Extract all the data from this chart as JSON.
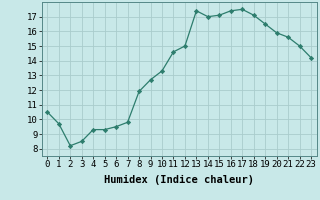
{
  "x": [
    0,
    1,
    2,
    3,
    4,
    5,
    6,
    7,
    8,
    9,
    10,
    11,
    12,
    13,
    14,
    15,
    16,
    17,
    18,
    19,
    20,
    21,
    22,
    23
  ],
  "y": [
    10.5,
    9.7,
    8.2,
    8.5,
    9.3,
    9.3,
    9.5,
    9.8,
    11.9,
    12.7,
    13.3,
    14.6,
    15.0,
    17.4,
    17.0,
    17.1,
    17.4,
    17.5,
    17.1,
    16.5,
    15.9,
    15.6,
    15.0,
    14.2
  ],
  "line_color": "#2d7d6d",
  "marker": "D",
  "marker_size": 2.2,
  "bg_color": "#c8e8e8",
  "grid_color": "#aacccc",
  "xlabel": "Humidex (Indice chaleur)",
  "xlim": [
    -0.5,
    23.5
  ],
  "ylim": [
    7.5,
    18.0
  ],
  "yticks": [
    8,
    9,
    10,
    11,
    12,
    13,
    14,
    15,
    16,
    17
  ],
  "xtick_labels": [
    "0",
    "1",
    "2",
    "3",
    "4",
    "5",
    "6",
    "7",
    "8",
    "9",
    "10",
    "11",
    "12",
    "13",
    "14",
    "15",
    "16",
    "17",
    "18",
    "19",
    "20",
    "21",
    "22",
    "23"
  ],
  "xlabel_fontsize": 7.5,
  "tick_fontsize": 6.5
}
